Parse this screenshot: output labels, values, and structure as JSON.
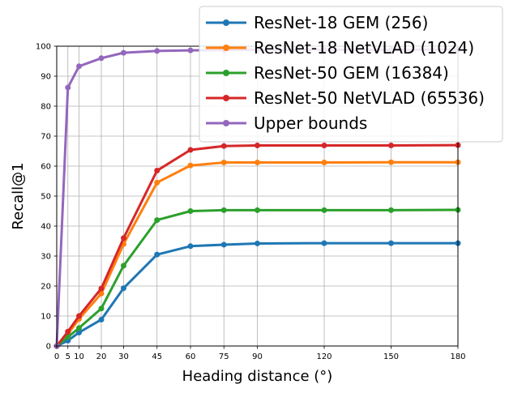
{
  "chart_data": {
    "type": "line",
    "xlabel": "Heading distance (°)",
    "ylabel": "Recall@1",
    "x": [
      0,
      5,
      10,
      20,
      30,
      45,
      60,
      75,
      90,
      120,
      150,
      180
    ],
    "xticks": [
      "0",
      "5",
      "10",
      "20",
      "30",
      "45",
      "60",
      "75",
      "90",
      "120",
      "150",
      "180"
    ],
    "yticks": [
      "0",
      "10",
      "20",
      "30",
      "40",
      "50",
      "60",
      "70",
      "80",
      "90",
      "100"
    ],
    "xlim": [
      0,
      180
    ],
    "ylim": [
      0,
      100
    ],
    "grid": true,
    "legend_position": "top-right",
    "series": [
      {
        "name": "ResNet-18 GEM (256)",
        "color": "#1f77b4",
        "values": [
          0,
          1.8,
          4.5,
          8.8,
          19.3,
          30.5,
          33.3,
          33.8,
          34.2,
          34.3,
          34.3,
          34.3
        ]
      },
      {
        "name": "ResNet-18 NetVLAD (1024)",
        "color": "#ff7f0e",
        "values": [
          0,
          4.0,
          9.0,
          17.5,
          34.0,
          54.5,
          60.2,
          61.2,
          61.2,
          61.2,
          61.3,
          61.3
        ]
      },
      {
        "name": "ResNet-50 GEM (16384)",
        "color": "#2ca02c",
        "values": [
          0,
          3.0,
          6.0,
          12.5,
          26.8,
          42.0,
          45.0,
          45.3,
          45.3,
          45.3,
          45.3,
          45.4
        ]
      },
      {
        "name": "ResNet-50 NetVLAD (65536)",
        "color": "#d62728",
        "values": [
          0,
          4.8,
          10.0,
          19.2,
          36.0,
          58.5,
          65.4,
          66.7,
          66.9,
          66.9,
          66.9,
          67.0
        ]
      },
      {
        "name": "Upper bounds",
        "color": "#9467bd",
        "values": [
          0,
          86.2,
          93.3,
          96.0,
          97.8,
          98.4,
          98.6,
          98.7,
          98.8,
          98.8,
          98.8,
          98.9
        ]
      }
    ]
  }
}
